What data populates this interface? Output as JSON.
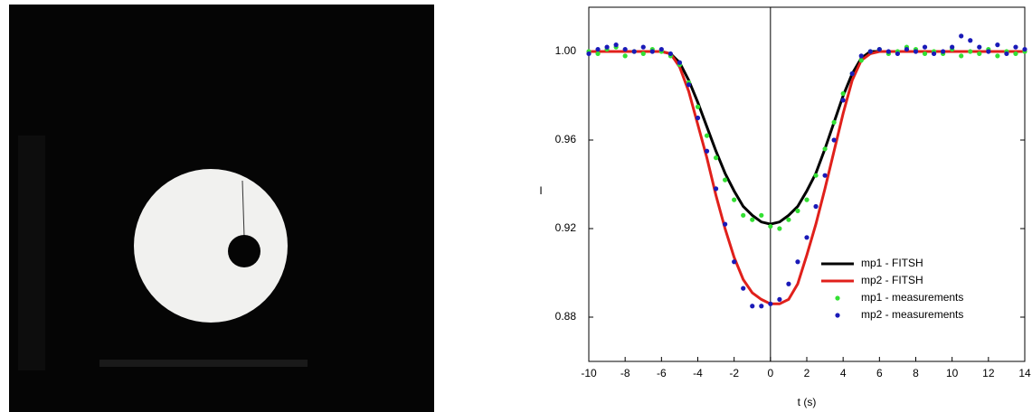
{
  "chart_data": {
    "type": "line",
    "xlabel": "t (s)",
    "ylabel": "I",
    "xlim": [
      -10,
      14
    ],
    "xticks": [
      -10,
      -8,
      -6,
      -4,
      -2,
      0,
      2,
      4,
      6,
      8,
      10,
      12,
      14
    ],
    "ylim": [
      0.86,
      1.02
    ],
    "yticks": [
      0.88,
      0.92,
      0.96,
      {
        "value": 1,
        "label": "1.00"
      }
    ],
    "legend": "lower right",
    "series": [
      {
        "name": "mp1 - FITSH",
        "color": "#000000",
        "mode": "line",
        "x": [
          -10,
          -6,
          -5.5,
          -5,
          -4.5,
          -4,
          -3.5,
          -3,
          -2.5,
          -2,
          -1.5,
          -1,
          -0.5,
          0,
          0.5,
          1,
          1.5,
          2,
          2.5,
          3,
          3.5,
          4,
          4.5,
          5,
          5.5,
          14
        ],
        "values": [
          1,
          1,
          0.999,
          0.995,
          0.987,
          0.977,
          0.966,
          0.955,
          0.945,
          0.937,
          0.93,
          0.926,
          0.923,
          0.922,
          0.923,
          0.926,
          0.93,
          0.937,
          0.945,
          0.956,
          0.968,
          0.98,
          0.99,
          0.997,
          1,
          1
        ]
      },
      {
        "name": "mp2 - FITSH",
        "color": "#e0201b",
        "mode": "line",
        "x": [
          -10,
          -6,
          -5.5,
          -5,
          -4.5,
          -4,
          -3.5,
          -3,
          -2.5,
          -2,
          -1.5,
          -1,
          -0.5,
          0,
          0.5,
          1,
          1.5,
          2,
          2.5,
          3,
          3.5,
          4,
          4.5,
          5,
          5.5,
          6,
          14
        ],
        "values": [
          1,
          1,
          0.999,
          0.993,
          0.982,
          0.967,
          0.952,
          0.935,
          0.92,
          0.907,
          0.897,
          0.891,
          0.888,
          0.886,
          0.886,
          0.888,
          0.895,
          0.908,
          0.922,
          0.938,
          0.955,
          0.972,
          0.987,
          0.996,
          0.999,
          1,
          1
        ]
      },
      {
        "name": "mp1 - measurements",
        "color": "#33e033",
        "mode": "markers",
        "x": [
          -10,
          -9.5,
          -9,
          -8.5,
          -8,
          -7.5,
          -7,
          -6.5,
          -6,
          -5.5,
          -5,
          -4.5,
          -4,
          -3.5,
          -3,
          -2.5,
          -2,
          -1.5,
          -1,
          -0.5,
          0,
          0.5,
          1,
          1.5,
          2,
          2.5,
          3,
          3.5,
          4,
          4.5,
          5,
          5.5,
          6,
          6.5,
          7,
          7.5,
          8,
          8.5,
          9,
          9.5,
          10,
          10.5,
          11,
          11.5,
          12,
          12.5,
          13,
          13.5,
          14
        ],
        "values": [
          1.0,
          0.999,
          1.001,
          1.002,
          0.998,
          1.0,
          0.999,
          1.001,
          1.0,
          0.998,
          0.994,
          0.986,
          0.975,
          0.962,
          0.952,
          0.942,
          0.933,
          0.926,
          0.924,
          0.926,
          0.921,
          0.92,
          0.924,
          0.928,
          0.933,
          0.944,
          0.956,
          0.968,
          0.981,
          0.99,
          0.996,
          1.0,
          1.001,
          0.999,
          1.0,
          1.002,
          1.001,
          0.999,
          1.0,
          0.999,
          1.001,
          0.998,
          1.0,
          0.999,
          1.001,
          0.998,
          1.0,
          0.999,
          1.0
        ]
      },
      {
        "name": "mp2 - measurements",
        "color": "#1a1ab8",
        "mode": "markers",
        "x": [
          -10,
          -9.5,
          -9,
          -8.5,
          -8,
          -7.5,
          -7,
          -6.5,
          -6,
          -5.5,
          -5,
          -4.5,
          -4,
          -3.5,
          -3,
          -2.5,
          -2,
          -1.5,
          -1,
          -0.5,
          0,
          0.5,
          1,
          1.5,
          2,
          2.5,
          3,
          3.5,
          4,
          4.5,
          5,
          5.5,
          6,
          6.5,
          7,
          7.5,
          8,
          8.5,
          9,
          9.5,
          10,
          10.5,
          11,
          11.5,
          12,
          12.5,
          13,
          13.5,
          14
        ],
        "values": [
          0.999,
          1.001,
          1.002,
          1.003,
          1.001,
          1.0,
          1.002,
          1.0,
          1.001,
          0.999,
          0.995,
          0.985,
          0.97,
          0.955,
          0.938,
          0.922,
          0.905,
          0.893,
          0.885,
          0.885,
          0.886,
          0.888,
          0.895,
          0.905,
          0.916,
          0.93,
          0.944,
          0.96,
          0.978,
          0.99,
          0.998,
          1.0,
          1.001,
          1.0,
          0.999,
          1.001,
          1.0,
          1.002,
          0.999,
          1.0,
          1.002,
          1.007,
          1.005,
          1.002,
          1.0,
          1.003,
          0.999,
          1.002,
          1.001
        ]
      }
    ]
  }
}
